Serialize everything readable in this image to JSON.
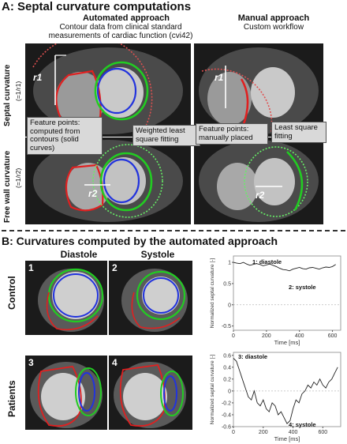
{
  "panel_a": {
    "title": "A: Septal curvature computations",
    "auto_heading": "Automated approach",
    "auto_sub": "Contour data from clinical standard measurements of cardiac function (cvi42)",
    "manual_heading": "Manual approach",
    "manual_sub": "Custom workflow",
    "row1_label": "Septal curvature",
    "row1_sub": "(=1/r1)",
    "row2_label": "Free wall curvature",
    "row2_sub": "(=1/r2)",
    "r1": "r1",
    "r2": "r2",
    "callout_feature_auto": "Feature points: computed from contours (solid curves)",
    "callout_weighted": "Weighted least square fitting",
    "callout_feature_manual": "Feature points: manually placed",
    "callout_least": "Least square fitting"
  },
  "panel_b": {
    "title": "B: Curvatures computed by the automated approach",
    "diastole": "Diastole",
    "systole": "Systole",
    "control": "Control",
    "patients": "Patients",
    "n1": "1",
    "n2": "2",
    "n3": "3",
    "n4": "4"
  },
  "colors": {
    "red": "#e02020",
    "green": "#22cc22",
    "blue": "#2233dd",
    "dark_bg": "#151515"
  },
  "chart_data": [
    {
      "type": "line",
      "ylabel": "Normalized septal curvature [-]",
      "xlabel": "Time [ms]",
      "xlim": [
        0,
        650
      ],
      "ylim": [
        -0.6,
        1.15
      ],
      "xticks": [
        0,
        200,
        400,
        600
      ],
      "yticks": [
        -0.5,
        0,
        0.5,
        1
      ],
      "annotations": [
        "1: diastole",
        "2: systole"
      ],
      "x": [
        0,
        20,
        40,
        60,
        80,
        100,
        120,
        140,
        160,
        180,
        200,
        220,
        240,
        260,
        280,
        300,
        320,
        340,
        360,
        380,
        400,
        420,
        440,
        460,
        480,
        500,
        520,
        540,
        560,
        580,
        600,
        620
      ],
      "values": [
        1.0,
        0.98,
        0.97,
        1.0,
        0.96,
        0.93,
        0.95,
        0.97,
        0.95,
        0.92,
        0.94,
        0.96,
        0.93,
        0.9,
        0.86,
        0.83,
        0.82,
        0.8,
        0.84,
        0.86,
        0.88,
        0.85,
        0.84,
        0.87,
        0.88,
        0.86,
        0.84,
        0.87,
        0.89,
        0.88,
        0.9,
        0.95
      ]
    },
    {
      "type": "line",
      "ylabel": "Normalized septal curvature [-]",
      "xlabel": "Time [ms]",
      "xlim": [
        0,
        720
      ],
      "ylim": [
        -0.6,
        0.65
      ],
      "xticks": [
        0,
        200,
        400,
        600
      ],
      "yticks": [
        -0.6,
        -0.4,
        -0.2,
        0,
        0.2,
        0.4,
        0.6
      ],
      "annotations": [
        "3: diastole",
        "4: systole"
      ],
      "x": [
        0,
        20,
        40,
        60,
        80,
        100,
        120,
        140,
        160,
        180,
        200,
        220,
        240,
        260,
        280,
        300,
        320,
        340,
        360,
        380,
        400,
        420,
        440,
        460,
        480,
        500,
        520,
        540,
        560,
        580,
        600,
        620,
        640,
        660,
        680,
        700
      ],
      "values": [
        0.55,
        0.5,
        0.35,
        0.2,
        0.05,
        -0.1,
        -0.15,
        0.0,
        -0.2,
        -0.25,
        -0.15,
        -0.3,
        -0.35,
        -0.2,
        -0.25,
        -0.4,
        -0.35,
        -0.45,
        -0.55,
        -0.5,
        -0.3,
        -0.15,
        -0.2,
        -0.05,
        0.0,
        0.1,
        0.05,
        0.15,
        0.1,
        0.2,
        0.1,
        0.05,
        0.15,
        0.2,
        0.3,
        0.4
      ]
    }
  ]
}
